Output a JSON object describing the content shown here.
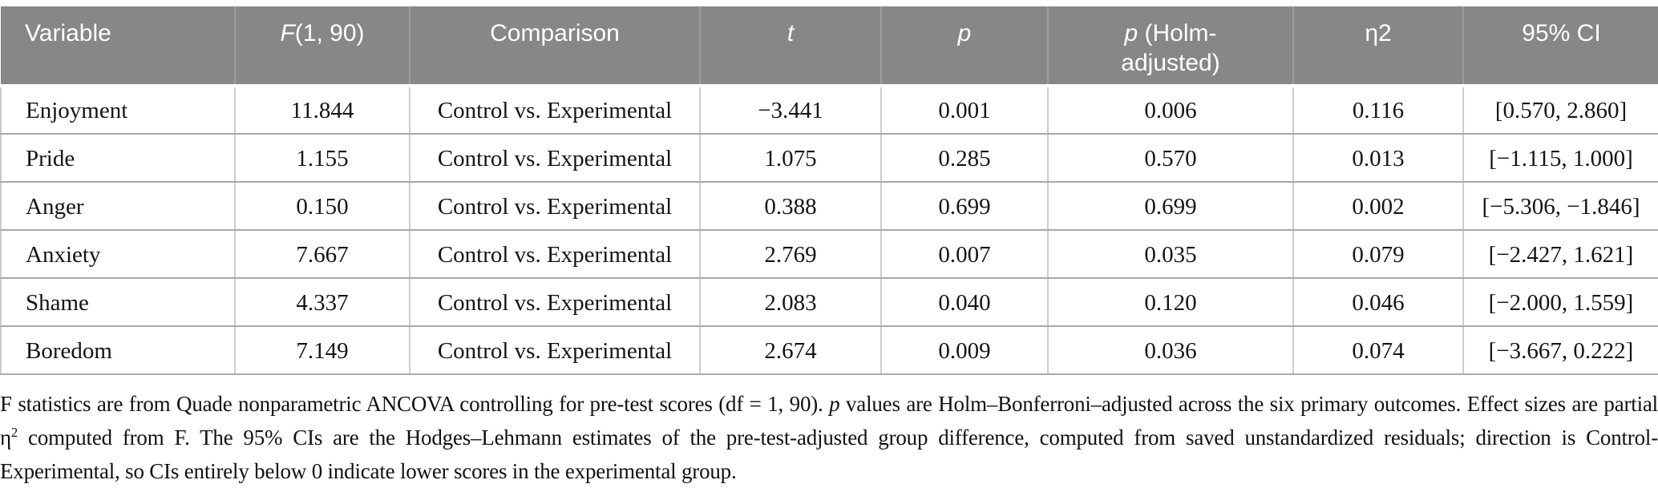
{
  "table": {
    "headers": [
      {
        "italic": "",
        "text": "Variable"
      },
      {
        "italic": "F",
        "text": "(1, 90)"
      },
      {
        "italic": "",
        "text": "Comparison"
      },
      {
        "italic": "t",
        "text": ""
      },
      {
        "italic": "p",
        "text": ""
      },
      {
        "italic": "p",
        "text": " (Holm-adjusted)"
      },
      {
        "italic": "",
        "text": "η2"
      },
      {
        "italic": "",
        "text": "95% CI"
      }
    ],
    "rows": [
      [
        "Enjoyment",
        "11.844",
        "Control vs. Experimental",
        "−3.441",
        "0.001",
        "0.006",
        "0.116",
        "[0.570, 2.860]"
      ],
      [
        "Pride",
        "1.155",
        "Control vs. Experimental",
        "1.075",
        "0.285",
        "0.570",
        "0.013",
        "[−1.115, 1.000]"
      ],
      [
        "Anger",
        "0.150",
        "Control vs. Experimental",
        "0.388",
        "0.699",
        "0.699",
        "0.002",
        "[−5.306, −1.846]"
      ],
      [
        "Anxiety",
        "7.667",
        "Control vs. Experimental",
        "2.769",
        "0.007",
        "0.035",
        "0.079",
        "[−2.427, 1.621]"
      ],
      [
        "Shame",
        "4.337",
        "Control vs. Experimental",
        "2.083",
        "0.040",
        "0.120",
        "0.046",
        "[−2.000, 1.559]"
      ],
      [
        "Boredom",
        "7.149",
        "Control vs. Experimental",
        "2.674",
        "0.009",
        "0.036",
        "0.074",
        "[−3.667, 0.222]"
      ]
    ]
  },
  "footnote": {
    "seg1": "F statistics are from Quade nonparametric ANCOVA controlling for pre-test scores (df = 1, 90). ",
    "p_italic": "p",
    "seg2": " values are Holm–Bonferroni–adjusted across the six primary outcomes. Effect sizes are partial η",
    "sup": "2",
    "seg3": " computed from F. The 95% CIs are the Hodges–Lehmann estimates of the pre-test-adjusted group difference, computed from saved unstandardized residuals; direction is Control-Experimental, so CIs entirely below 0 indicate lower scores in the experimental group."
  },
  "colors": {
    "header_bg": "#878787",
    "header_text": "#ffffff",
    "header_divider": "#9d9d9d",
    "body_vertical_divider": "#cdcdcd",
    "row_separator": "#a9a9a9",
    "body_text": "#141414"
  }
}
